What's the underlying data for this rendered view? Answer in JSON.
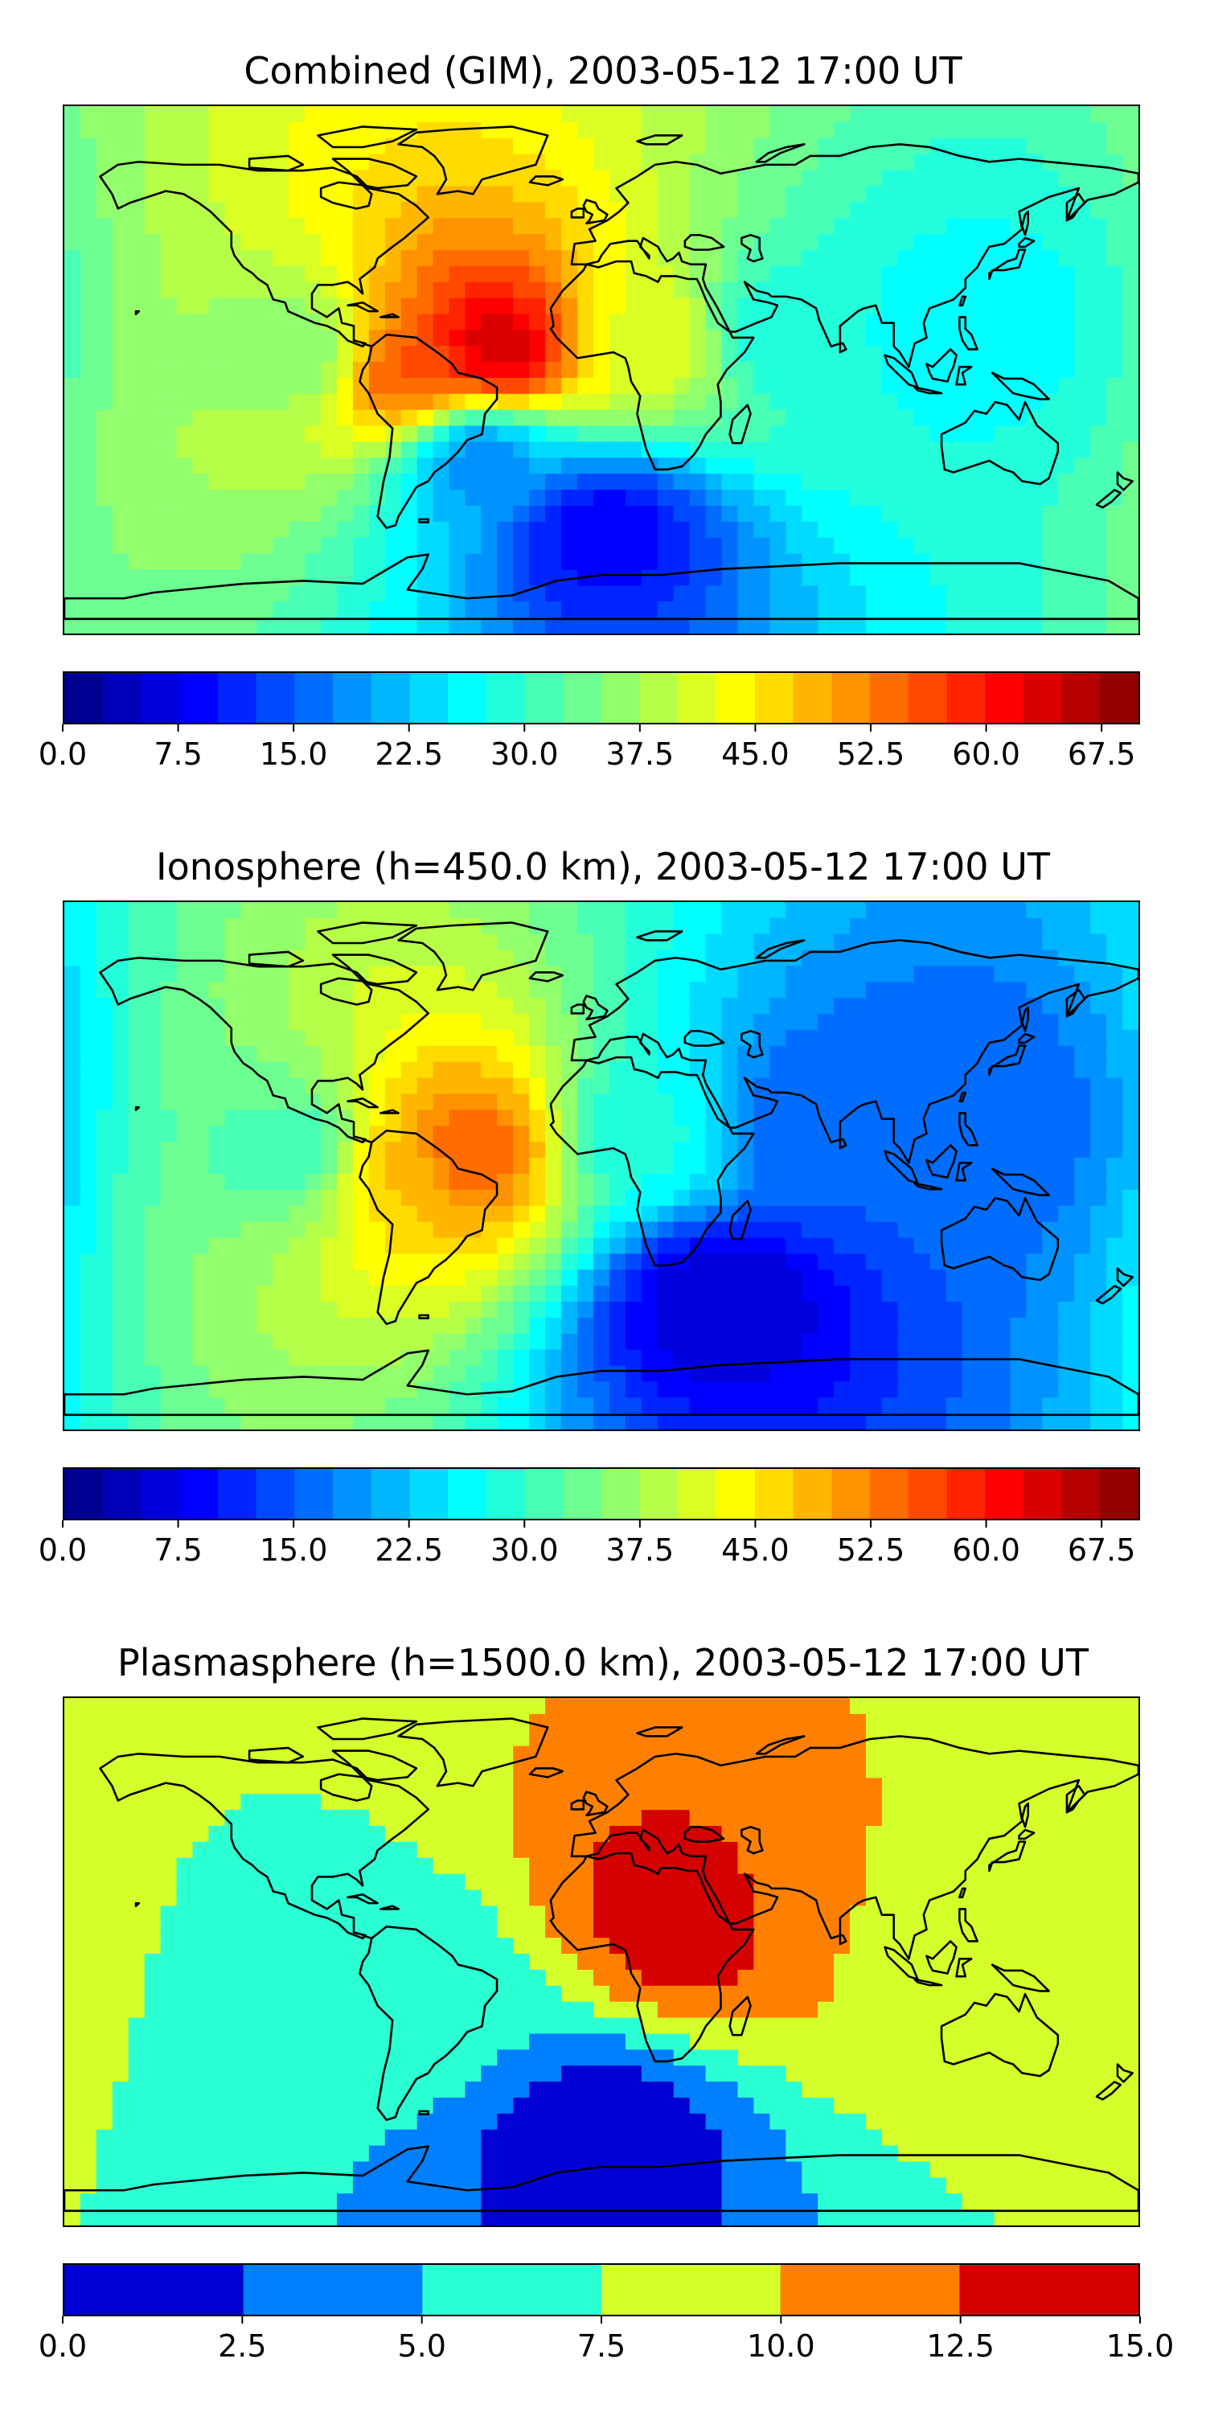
{
  "chart_data": [
    {
      "type": "heatmap",
      "title": "Combined (GIM), 2003-05-12 17:00 UT",
      "colorbar": {
        "levels_min": 0.0,
        "levels_max": 70.0,
        "levels_step": 2.5,
        "tick_values": [
          0.0,
          7.5,
          15.0,
          22.5,
          30.0,
          37.5,
          45.0,
          52.5,
          60.0,
          67.5
        ],
        "tick_labels": [
          "0.0",
          "7.5",
          "15.0",
          "22.5",
          "30.0",
          "37.5",
          "45.0",
          "52.5",
          "60.0",
          "67.5"
        ]
      },
      "field_features": [
        {
          "lon": -35,
          "lat": 7,
          "value": 65
        },
        {
          "lon": -65,
          "lat": 0,
          "value": 56
        },
        {
          "lon": -100,
          "lat": 5,
          "value": 35
        },
        {
          "lon": 15,
          "lat": 10,
          "value": 42
        },
        {
          "lon": 60,
          "lat": 12,
          "value": 28
        },
        {
          "lon": 120,
          "lat": 15,
          "value": 26
        },
        {
          "lon": -40,
          "lat": -30,
          "value": 18
        },
        {
          "lon": 0,
          "lat": -55,
          "value": 8
        }
      ]
    },
    {
      "type": "heatmap",
      "title": "Ionosphere  (h=450.0 km), 2003-05-12 17:00 UT",
      "colorbar": {
        "levels_min": 0.0,
        "levels_max": 70.0,
        "levels_step": 2.5,
        "tick_values": [
          0.0,
          7.5,
          15.0,
          22.5,
          30.0,
          37.5,
          45.0,
          52.5,
          60.0,
          67.5
        ],
        "tick_labels": [
          "0.0",
          "7.5",
          "15.0",
          "22.5",
          "30.0",
          "37.5",
          "45.0",
          "52.5",
          "60.0",
          "67.5"
        ]
      },
      "field_features": [
        {
          "lon": -45,
          "lat": 5,
          "value": 55
        },
        {
          "lon": -70,
          "lat": 0,
          "value": 48
        },
        {
          "lon": -100,
          "lat": 5,
          "value": 30
        },
        {
          "lon": 15,
          "lat": 10,
          "value": 28
        },
        {
          "lon": 70,
          "lat": 15,
          "value": 15
        },
        {
          "lon": 120,
          "lat": 15,
          "value": 15
        },
        {
          "lon": 40,
          "lat": -45,
          "value": 5
        }
      ]
    },
    {
      "type": "heatmap",
      "title": "Plasmasphere (h=1500.0 km), 2003-05-12 17:00 UT",
      "colorbar": {
        "levels_min": 0.0,
        "levels_max": 15.0,
        "levels_step": 2.5,
        "tick_values": [
          0.0,
          2.5,
          5.0,
          7.5,
          10.0,
          12.5,
          15.0
        ],
        "tick_labels": [
          "0.0",
          "2.5",
          "5.0",
          "7.5",
          "10.0",
          "12.5",
          "15.0"
        ]
      },
      "field_features": [
        {
          "lon": 30,
          "lat": 15,
          "value": 14
        },
        {
          "lon": 80,
          "lat": 20,
          "value": 10
        },
        {
          "lon": 130,
          "lat": 0,
          "value": 8
        },
        {
          "lon": -170,
          "lat": 5,
          "value": 7.5
        },
        {
          "lon": -60,
          "lat": -15,
          "value": 6
        },
        {
          "lon": 0,
          "lat": -60,
          "value": 1
        }
      ]
    }
  ]
}
